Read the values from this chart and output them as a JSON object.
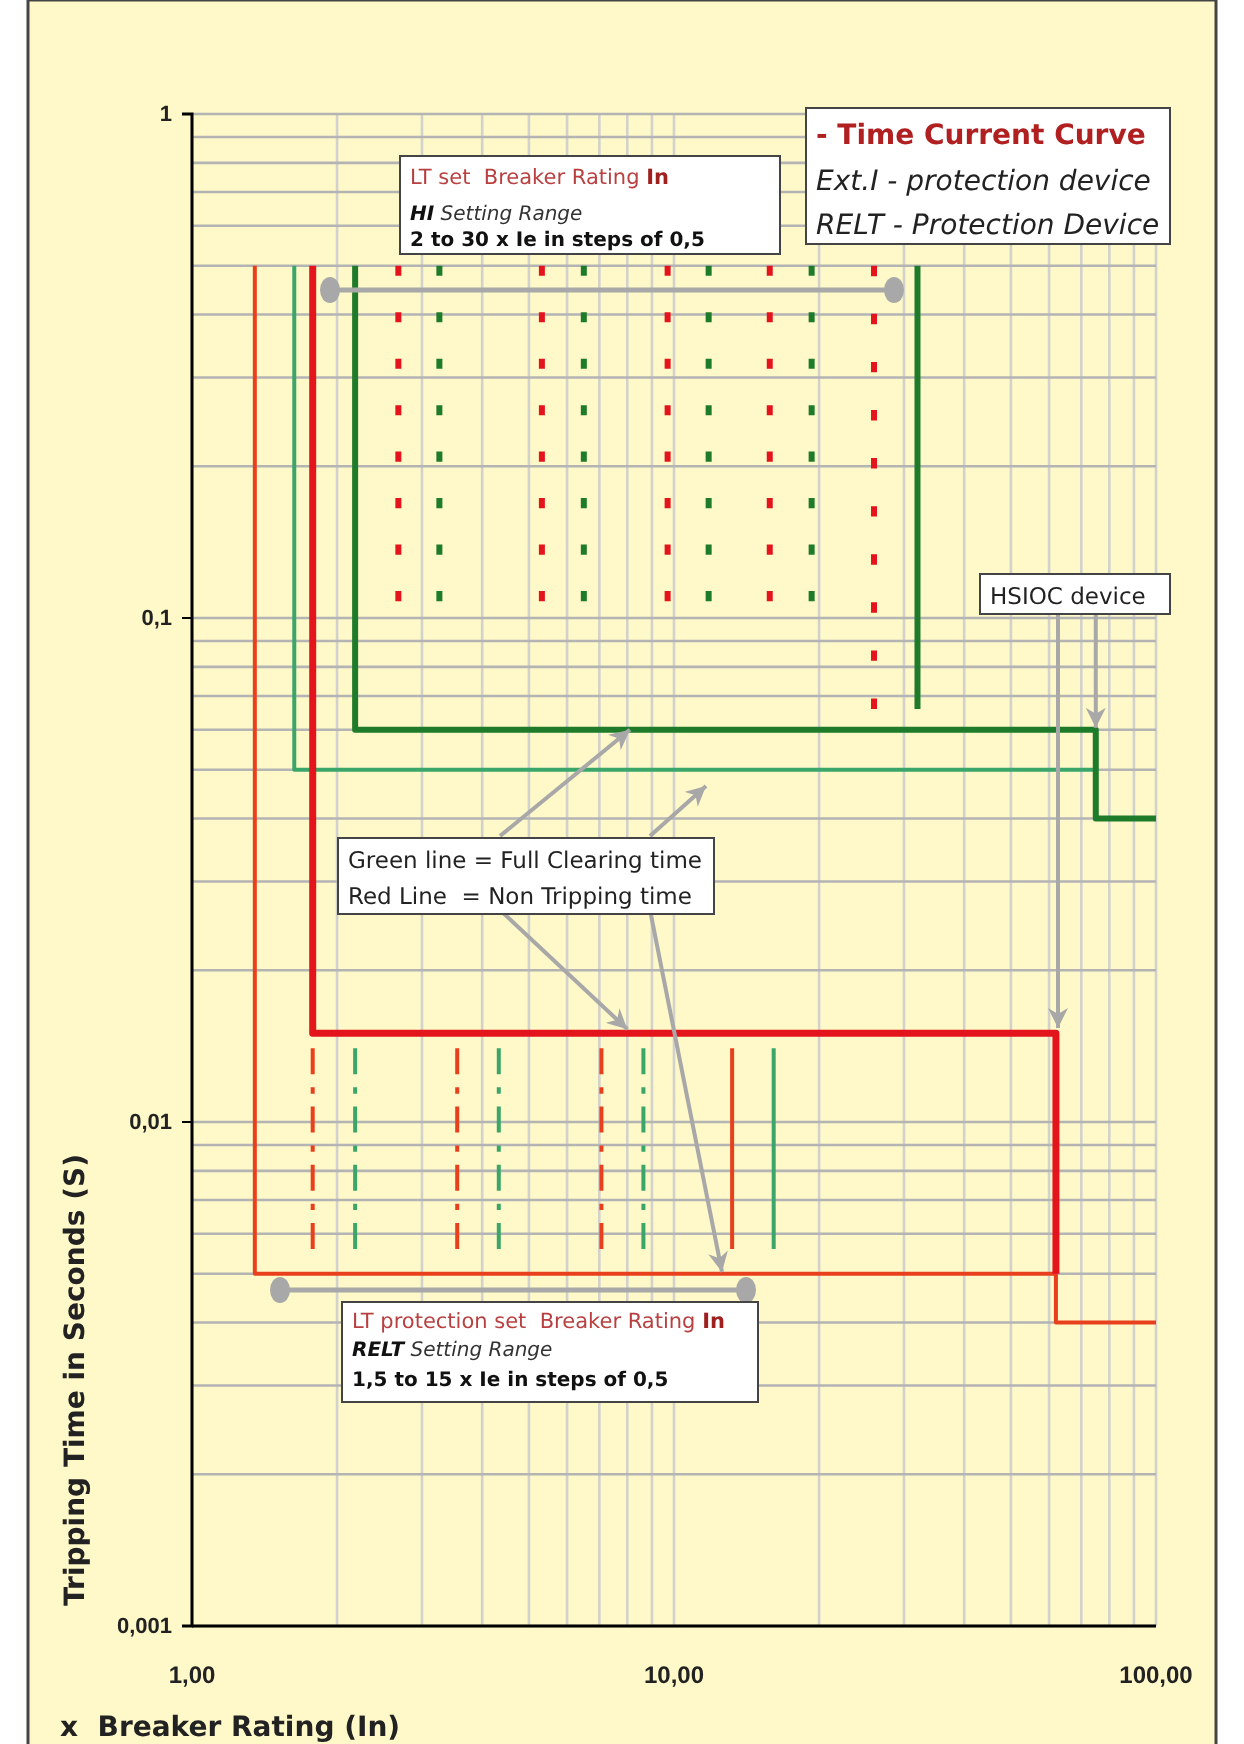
{
  "chart_data": {
    "type": "line",
    "log": "xy",
    "grid": true,
    "xlabel": "x  Breaker Rating (In)",
    "ylabel": "Tripping Time in Seconds (S)",
    "xlim": [
      1,
      100
    ],
    "ylim": [
      0.001,
      1
    ],
    "xticks": [
      {
        "value": 1,
        "label": "1,00"
      },
      {
        "value": 10,
        "label": "10,00"
      },
      {
        "value": 100,
        "label": "100,00"
      }
    ],
    "yticks": [
      {
        "value": 0.001,
        "label": "0,001"
      },
      {
        "value": 0.01,
        "label": "0,01"
      },
      {
        "value": 0.1,
        "label": "0,1"
      },
      1
    ],
    "annotations": [
      "- Time Current Curve",
      "Ext.I - protection device",
      "RELT - Protection Device",
      "LT set  Breaker Rating In",
      "HI Setting Range",
      "2 to 30 x Ie in steps of 0,5",
      {
        "text": "Green line = Full Clearing time",
        "x": 8.1,
        "y": 0.06
      },
      {
        "text": "Red Line  = Non Tripping time",
        "x": 8,
        "y": 0.015
      },
      {
        "text": "HSIOC device",
        "x": 75,
        "y": 0.06
      },
      "LT protection set  Breaker Rating In",
      "RELT Setting Range",
      "1,5 to 15 x Ie in steps of 0,5"
    ],
    "series": [
      {
        "color": "#e8401c",
        "x": [
          1.35,
          1.35,
          62,
          62,
          100
        ],
        "values": [
          0.5,
          0.005,
          0.005,
          0.004,
          0.004
        ]
      },
      {
        "color": "#3aa66a",
        "x": [
          1.63,
          1.63,
          75,
          75,
          100
        ],
        "values": [
          0.5,
          0.05,
          0.05,
          0.04,
          0.04
        ]
      },
      {
        "color": "#e4141c",
        "x": [
          1.78,
          1.78,
          62,
          62
        ],
        "values": [
          0.5,
          0.015,
          0.015,
          0.005
        ]
      },
      {
        "color": "#1e7b2a",
        "x": [
          2.18,
          2.18,
          75,
          75,
          100
        ],
        "values": [
          0.5,
          0.06,
          0.06,
          0.04,
          0.04
        ]
      },
      {
        "color": "#1e7b2a",
        "x": [
          32,
          32
        ],
        "values": [
          0.5,
          0.066
        ]
      },
      {
        "color": "#e4141c",
        "line_style": "dotted",
        "x": [
          2.68,
          2.68
        ],
        "values": [
          0.5,
          0.108
        ]
      },
      {
        "color": "#e4141c",
        "line_style": "dotted",
        "x": [
          5.32,
          5.32
        ],
        "values": [
          0.5,
          0.108
        ]
      },
      {
        "color": "#e4141c",
        "line_style": "dotted",
        "x": [
          9.7,
          9.7
        ],
        "values": [
          0.5,
          0.108
        ]
      },
      {
        "color": "#e4141c",
        "line_style": "dotted",
        "x": [
          15.8,
          15.8
        ],
        "values": [
          0.5,
          0.108
        ]
      },
      {
        "color": "#e4141c",
        "line_style": "dotted",
        "x": [
          26,
          26
        ],
        "values": [
          0.5,
          0.066
        ]
      },
      {
        "color": "#1e7b2a",
        "line_style": "dotted",
        "x": [
          3.26,
          3.26
        ],
        "values": [
          0.5,
          0.108
        ]
      },
      {
        "color": "#1e7b2a",
        "line_style": "dotted",
        "x": [
          6.5,
          6.5
        ],
        "values": [
          0.5,
          0.108
        ]
      },
      {
        "color": "#1e7b2a",
        "line_style": "dotted",
        "x": [
          11.8,
          11.8
        ],
        "values": [
          0.5,
          0.108
        ]
      },
      {
        "color": "#1e7b2a",
        "line_style": "dotted",
        "x": [
          19.3,
          19.3
        ],
        "values": [
          0.5,
          0.108
        ]
      },
      {
        "color": "#e8401c",
        "line_style": "dashed",
        "x": [
          1.78,
          1.78
        ],
        "values": [
          0.014,
          0.0056
        ]
      },
      {
        "color": "#e8401c",
        "line_style": "dashed",
        "x": [
          3.55,
          3.55
        ],
        "values": [
          0.014,
          0.0056
        ]
      },
      {
        "color": "#e8401c",
        "line_style": "dashed",
        "x": [
          7.07,
          7.07
        ],
        "values": [
          0.014,
          0.0056
        ]
      },
      {
        "color": "#3aa66a",
        "line_style": "dashed",
        "x": [
          2.18,
          2.18
        ],
        "values": [
          0.014,
          0.0056
        ]
      },
      {
        "color": "#3aa66a",
        "line_style": "dashed",
        "x": [
          4.33,
          4.33
        ],
        "values": [
          0.014,
          0.0056
        ]
      },
      {
        "color": "#3aa66a",
        "line_style": "dashed",
        "x": [
          8.64,
          8.64
        ],
        "values": [
          0.014,
          0.0056
        ]
      },
      {
        "color": "#e8401c",
        "x": [
          13.2,
          13.2
        ],
        "values": [
          0.014,
          0.0056
        ]
      },
      {
        "color": "#3aa66a",
        "x": [
          16.1,
          16.1
        ],
        "values": [
          0.014,
          0.0056
        ]
      }
    ]
  }
}
